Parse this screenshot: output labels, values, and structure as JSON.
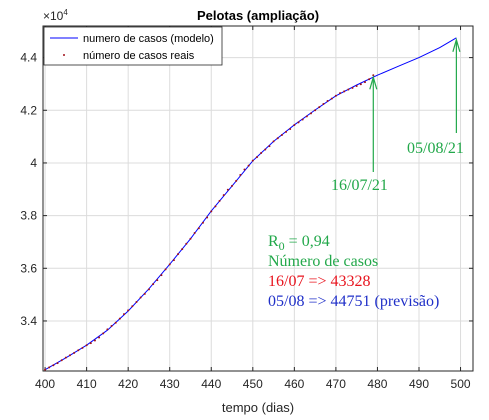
{
  "chart_data": {
    "type": "line",
    "title": "Pelotas (ampliação)",
    "xlabel": "tempo (dias)",
    "ylabel": "",
    "xlim": [
      399.5,
      503
    ],
    "ylim": [
      32100,
      45200
    ],
    "y_exponent_label": "×10",
    "y_exponent_power": "4",
    "xticks": [
      400,
      410,
      420,
      430,
      440,
      450,
      460,
      470,
      480,
      490,
      500
    ],
    "yticks": [
      {
        "value": 34000,
        "label": "3.4"
      },
      {
        "value": 36000,
        "label": "3.6"
      },
      {
        "value": 38000,
        "label": "3.8"
      },
      {
        "value": 40000,
        "label": "4"
      },
      {
        "value": 42000,
        "label": "4.2"
      },
      {
        "value": 44000,
        "label": "4.4"
      }
    ],
    "grid": true,
    "legend_position": "top-left",
    "series": [
      {
        "name": "numero de casos (modelo)",
        "style": "line",
        "color": "#0000ff",
        "x": [
          400,
          405,
          410,
          415,
          420,
          425,
          430,
          435,
          440,
          445,
          450,
          455,
          460,
          465,
          470,
          475,
          480,
          485,
          490,
          495,
          499
        ],
        "y": [
          32150,
          32600,
          33080,
          33650,
          34380,
          35220,
          36150,
          37120,
          38180,
          39120,
          40080,
          40820,
          41450,
          42010,
          42550,
          42960,
          43330,
          43670,
          44000,
          44380,
          44751
        ]
      },
      {
        "name": "número de casos reais",
        "style": "points",
        "color": "#a0101a",
        "x": [
          400,
          401,
          402,
          403,
          404,
          405,
          406,
          407,
          408,
          409,
          410,
          411,
          412,
          413,
          414,
          415,
          416,
          417,
          418,
          419,
          420,
          421,
          422,
          423,
          424,
          425,
          426,
          427,
          428,
          429,
          430,
          431,
          432,
          433,
          434,
          435,
          436,
          437,
          438,
          439,
          440,
          441,
          442,
          443,
          444,
          445,
          446,
          447,
          448,
          449,
          450,
          451,
          452,
          453,
          454,
          455,
          456,
          457,
          458,
          459,
          460,
          461,
          462,
          463,
          464,
          465,
          466,
          467,
          468,
          469,
          470,
          471,
          472,
          473,
          474,
          475,
          476,
          477,
          478,
          479
        ],
        "y": [
          32150,
          32240,
          32320,
          32400,
          32510,
          32610,
          32700,
          32790,
          32890,
          32980,
          33080,
          33160,
          33260,
          33370,
          33530,
          33680,
          33810,
          33930,
          34090,
          34260,
          34400,
          34560,
          34720,
          34890,
          35030,
          35200,
          35400,
          35550,
          35740,
          35960,
          36150,
          36310,
          36540,
          36730,
          36930,
          37120,
          37340,
          37520,
          37730,
          37930,
          38160,
          38350,
          38560,
          38780,
          38980,
          39130,
          39320,
          39540,
          39750,
          39900,
          40090,
          40220,
          40380,
          40510,
          40640,
          40820,
          40940,
          41060,
          41180,
          41290,
          41440,
          41540,
          41650,
          41770,
          41880,
          42000,
          42120,
          42240,
          42350,
          42440,
          42550,
          42650,
          42720,
          42790,
          42850,
          42920,
          42990,
          43070,
          43180,
          43328
        ]
      }
    ],
    "annotations": [
      {
        "text": "16/07/21",
        "color": "#22a84a",
        "arrow_to": [
          479,
          43328
        ]
      },
      {
        "text": "05/08/21",
        "color": "#22a84a",
        "arrow_to": [
          499,
          44751
        ]
      }
    ]
  },
  "info_box": {
    "r0_prefix": "R",
    "r0_sub": "0",
    "r0_value": " = 0,94",
    "heading": "Número de casos",
    "line_real": "16/07 => 43328",
    "line_forecast": "05/08 => 44751 (previsão)",
    "color_heading": "#22a84a",
    "color_real": "#e8141e",
    "color_forecast": "#2030c8"
  }
}
